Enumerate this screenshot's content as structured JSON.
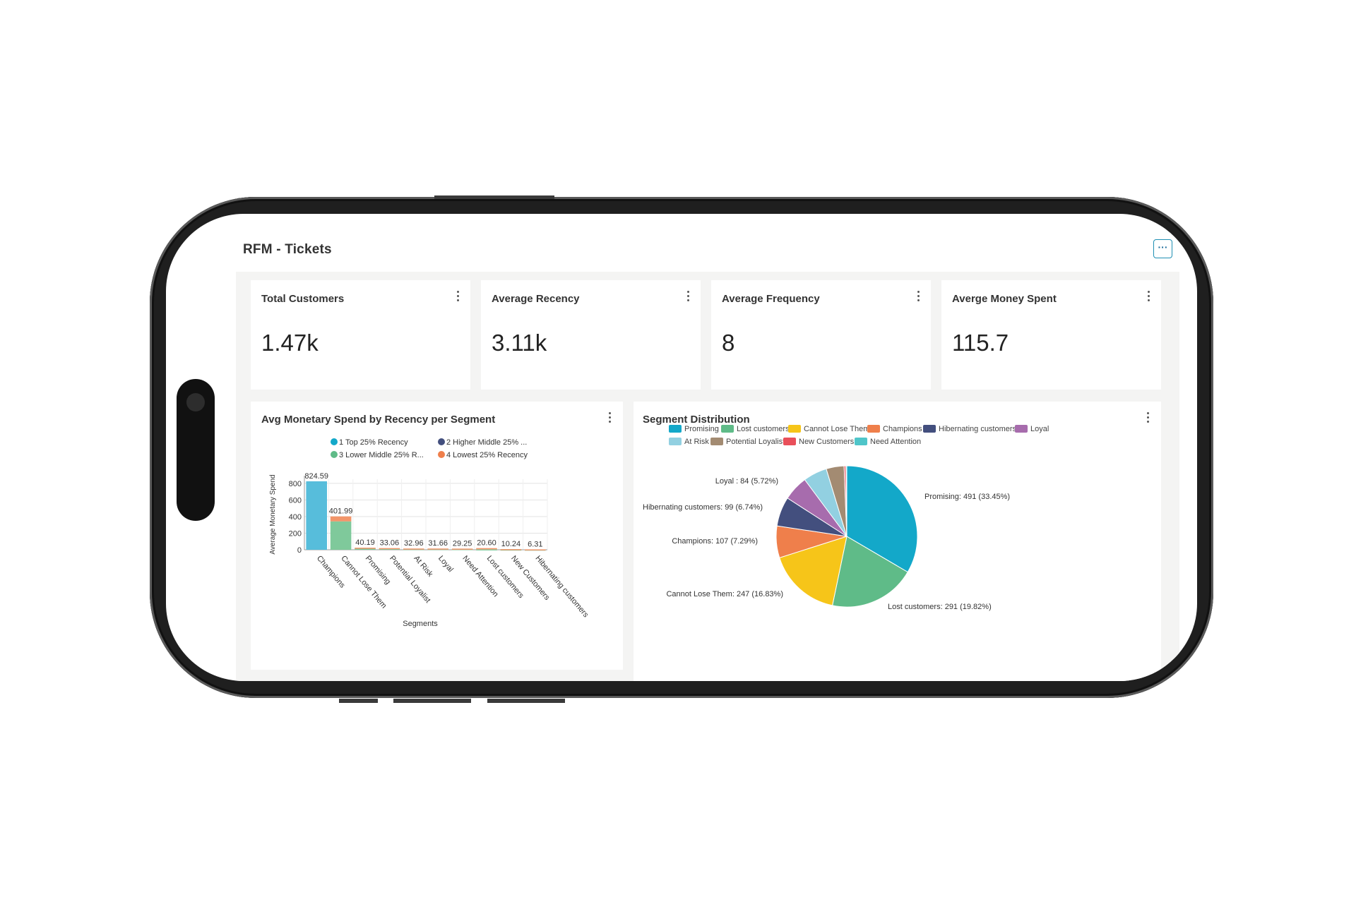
{
  "header": {
    "title": "RFM - Tickets",
    "more_label": "···"
  },
  "kpis": [
    {
      "label": "Total Customers",
      "value": "1.47k"
    },
    {
      "label": "Average Recency",
      "value": "3.11k"
    },
    {
      "label": "Average Frequency",
      "value": "8"
    },
    {
      "label": "Averge Money Spent",
      "value": "115.7"
    }
  ],
  "bar_panel": {
    "title": "Avg Monetary Spend by Recency per Segment"
  },
  "pie_panel": {
    "title": "Segment Distribution"
  },
  "colors": {
    "Promising": "#13a8c9",
    "Lost customers": "#5fbb88",
    "Cannot Lose Them": "#f6c519",
    "Champions": "#ef7f4b",
    "Hibernating customers": "#434f7e",
    "Loyal": "#a76cad",
    "At Risk": "#92d0e1",
    "Potential Loyalist": "#a38b72",
    "New Customers": "#e94f5a",
    "Need Attention": "#4fc5c9"
  },
  "chart_data": [
    {
      "type": "bar",
      "title": "Avg Monetary Spend by Recency per Segment",
      "xlabel": "Segments",
      "ylabel": "Average Monetary Spend",
      "ylim": [
        0,
        850
      ],
      "yticks": [
        0,
        200,
        400,
        600,
        800
      ],
      "legend": [
        "1 Top 25% Recency",
        "2 Higher Middle 25% ...",
        "3 Lower Middle 25% R...",
        "4 Lowest 25% Recency"
      ],
      "legend_colors": [
        "#13a8c9",
        "#434f7e",
        "#5fbb88",
        "#ef7f4b"
      ],
      "categories": [
        "Champions",
        "Cannot Lose Them",
        "Promising",
        "Potential Loyalist",
        "At Risk",
        "Loyal",
        "Need Attention",
        "Lost customers",
        "New Customers",
        "Hibernating customers"
      ],
      "totals": [
        "824.59",
        "401.99",
        "40.19",
        "33.06",
        "32.96",
        "31.66",
        "29.25",
        "20.60",
        "10.24",
        "6.31"
      ],
      "series": [
        {
          "name": "1 Top 25% Recency",
          "color": "#57bddb",
          "values": [
            824.59,
            0,
            0,
            0,
            0,
            0,
            0,
            0,
            0,
            0
          ]
        },
        {
          "name": "3 Lower Middle 25% R...",
          "color": "#7fc99b",
          "values": [
            0,
            341.99,
            20,
            15,
            10,
            10,
            9,
            5,
            3,
            2
          ]
        },
        {
          "name": "4 Lowest 25% Recency",
          "color": "#f2956a",
          "values": [
            0,
            60,
            5,
            5,
            5,
            5,
            5,
            15,
            5,
            3
          ]
        }
      ]
    },
    {
      "type": "pie",
      "title": "Segment Distribution",
      "legend": [
        "Promising",
        "Lost customers",
        "Cannot Lose Them",
        "Champions",
        "Hibernating customers",
        "Loyal",
        "At Risk",
        "Potential Loyalist",
        "New Customers",
        "Need Attention"
      ],
      "slices": [
        {
          "name": "Promising",
          "value": 491,
          "label": "Promising: 491 (33.45%)"
        },
        {
          "name": "Lost customers",
          "value": 291,
          "label": "Lost customers: 291 (19.82%)"
        },
        {
          "name": "Cannot Lose Them",
          "value": 247,
          "label": "Cannot Lose Them: 247 (16.83%)"
        },
        {
          "name": "Champions",
          "value": 107,
          "label": "Champions: 107 (7.29%)"
        },
        {
          "name": "Hibernating customers",
          "value": 99,
          "label": "Hibernating customers: 99 (6.74%)"
        },
        {
          "name": "Loyal",
          "value": 84,
          "label": "Loyal : 84 (5.72%)"
        },
        {
          "name": "At Risk",
          "value": 80,
          "label": ""
        },
        {
          "name": "Potential Loyalist",
          "value": 60,
          "label": ""
        },
        {
          "name": "New Customers",
          "value": 6,
          "label": ""
        },
        {
          "name": "Need Attention",
          "value": 3,
          "label": ""
        }
      ]
    }
  ]
}
